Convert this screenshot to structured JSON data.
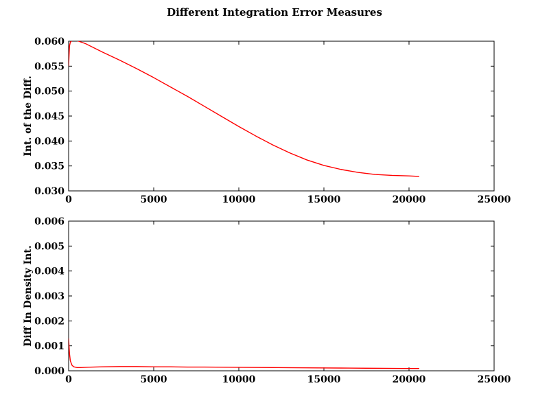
{
  "figure": {
    "title": "Different Integration Error Measures"
  },
  "chart_data": [
    {
      "type": "line",
      "title": "",
      "xlabel": "",
      "ylabel": "Int. of the Diff.",
      "xlim": [
        0,
        25000
      ],
      "ylim": [
        0.03,
        0.06
      ],
      "x_ticks": [
        "0",
        "5000",
        "10000",
        "15000",
        "20000",
        "25000"
      ],
      "y_ticks": [
        "0.030",
        "0.035",
        "0.040",
        "0.045",
        "0.050",
        "0.055",
        "0.060"
      ],
      "grid": false,
      "line_color": "#ff0000",
      "series": [
        {
          "x": [
            0,
            50,
            100,
            200,
            300,
            500,
            1000,
            2000,
            3000,
            4000,
            5000,
            6000,
            7000,
            8000,
            9000,
            10000,
            11000,
            12000,
            13000,
            14000,
            15000,
            16000,
            17000,
            18000,
            19000,
            20000,
            20600
          ],
          "values": [
            0.055,
            0.059,
            0.0598,
            0.0601,
            0.0602,
            0.0601,
            0.0595,
            0.0578,
            0.0562,
            0.0545,
            0.0527,
            0.0508,
            0.0489,
            0.0469,
            0.0449,
            0.0429,
            0.041,
            0.0392,
            0.0376,
            0.0362,
            0.0351,
            0.0343,
            0.0337,
            0.0333,
            0.0331,
            0.033,
            0.0329
          ]
        }
      ]
    },
    {
      "type": "line",
      "title": "",
      "xlabel": "",
      "ylabel": "Diff In Density Int.",
      "xlim": [
        0,
        25000
      ],
      "ylim": [
        0.0,
        0.006
      ],
      "x_ticks": [
        "0",
        "5000",
        "10000",
        "15000",
        "20000",
        "25000"
      ],
      "y_ticks": [
        "0.000",
        "0.001",
        "0.002",
        "0.003",
        "0.004",
        "0.005",
        "0.006"
      ],
      "grid": false,
      "line_color": "#ff0000",
      "series": [
        {
          "x": [
            0,
            50,
            100,
            200,
            300,
            500,
            700,
            1000,
            2000,
            3000,
            4000,
            5000,
            6000,
            7000,
            8000,
            10000,
            12000,
            14000,
            16000,
            18000,
            20000,
            20600
          ],
          "values": [
            0.0013,
            0.0007,
            0.0004,
            0.00022,
            0.00016,
            0.00013,
            0.00013,
            0.00014,
            0.00016,
            0.00017,
            0.00017,
            0.00016,
            0.00016,
            0.00015,
            0.00015,
            0.00014,
            0.00013,
            0.00012,
            0.00011,
            0.0001,
            9e-05,
            9e-05
          ]
        }
      ]
    }
  ]
}
